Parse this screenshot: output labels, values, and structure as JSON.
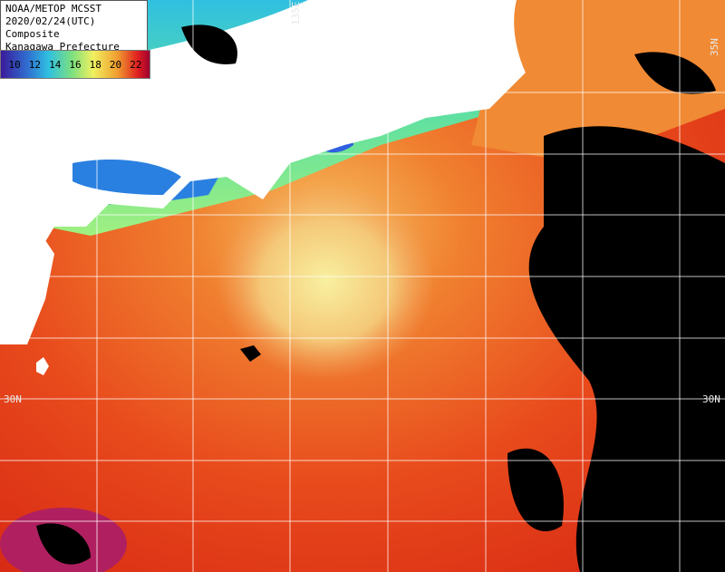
{
  "header": {
    "lines": [
      "NOAA/METOP MCSST",
      "2020/02/24(UTC) Composite",
      "Kanagawa Prefecture"
    ]
  },
  "legend": {
    "labels": [
      10,
      12,
      14,
      16,
      18,
      20,
      22
    ]
  },
  "grid_labels": {
    "lat_left": "30N",
    "lat_right": "30N",
    "lat_top_right": "35N",
    "lon_top": "135E"
  }
}
